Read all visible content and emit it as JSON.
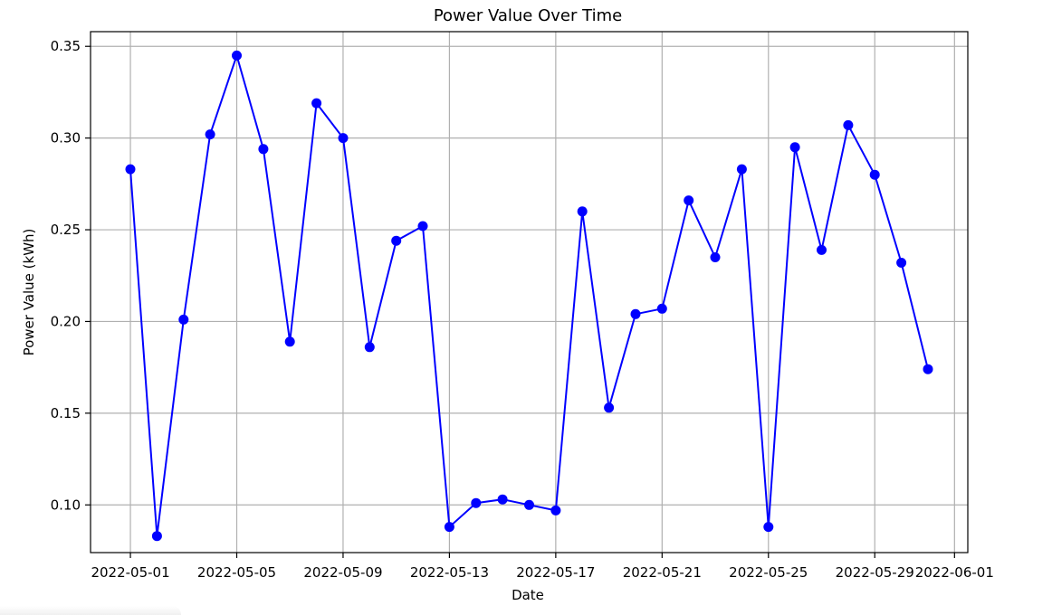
{
  "chart_data": {
    "type": "line",
    "title": "Power Value Over Time",
    "xlabel": "Date",
    "ylabel": "Power Value (kWh)",
    "ylim": [
      0.074,
      0.358
    ],
    "xlim": [
      "2022-04-29T12:00",
      "2022-06-01T12:00"
    ],
    "grid": true,
    "color": "#0000ff",
    "marker": "circle",
    "x_ticks": [
      "2022-05-01",
      "2022-05-05",
      "2022-05-09",
      "2022-05-13",
      "2022-05-17",
      "2022-05-21",
      "2022-05-25",
      "2022-05-29",
      "2022-06-01"
    ],
    "y_ticks": [
      "0.10",
      "0.15",
      "0.20",
      "0.25",
      "0.30",
      "0.35"
    ],
    "x": [
      "2022-05-01",
      "2022-05-02",
      "2022-05-03",
      "2022-05-04",
      "2022-05-05",
      "2022-05-06",
      "2022-05-07",
      "2022-05-08",
      "2022-05-09",
      "2022-05-10",
      "2022-05-11",
      "2022-05-12",
      "2022-05-13",
      "2022-05-14",
      "2022-05-15",
      "2022-05-16",
      "2022-05-17",
      "2022-05-18",
      "2022-05-19",
      "2022-05-20",
      "2022-05-21",
      "2022-05-22",
      "2022-05-23",
      "2022-05-24",
      "2022-05-25",
      "2022-05-26",
      "2022-05-27",
      "2022-05-28",
      "2022-05-29",
      "2022-05-30",
      "2022-05-31"
    ],
    "series": [
      {
        "values": [
          0.283,
          0.083,
          0.201,
          0.302,
          0.345,
          0.294,
          0.189,
          0.319,
          0.3,
          0.186,
          0.244,
          0.252,
          0.088,
          0.101,
          0.103,
          0.1,
          0.097,
          0.26,
          0.153,
          0.204,
          0.207,
          0.266,
          0.235,
          0.283,
          0.088,
          0.295,
          0.239,
          0.307,
          0.28,
          0.232,
          0.174
        ]
      }
    ]
  }
}
